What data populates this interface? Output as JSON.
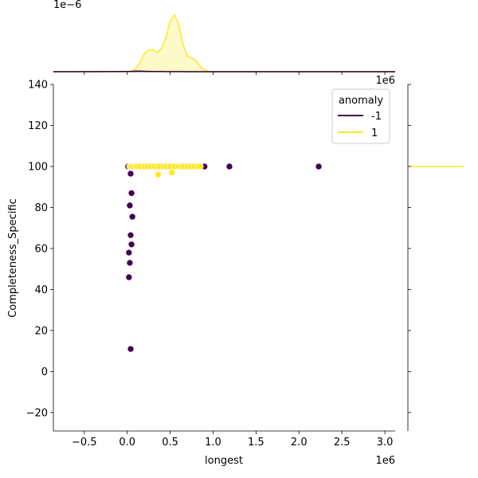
{
  "chart_data": {
    "type": "scatter",
    "xlabel": "longest",
    "ylabel": "Completeness_Specific",
    "x_offset_label": "1e6",
    "top_marginal_offset_label": "1e−6",
    "right_marginal_offset_label": "1e6",
    "xlim": [
      -0.86,
      3.12
    ],
    "ylim": [
      -29,
      140
    ],
    "x_ticks": [
      -0.5,
      0.0,
      0.5,
      1.0,
      1.5,
      2.0,
      2.5,
      3.0
    ],
    "x_tick_labels": [
      "−0.5",
      "0.0",
      "0.5",
      "1.0",
      "1.5",
      "2.0",
      "2.5",
      "3.0"
    ],
    "y_ticks": [
      -20,
      0,
      20,
      40,
      60,
      80,
      100,
      120,
      140
    ],
    "y_tick_labels": [
      "−20",
      "0",
      "20",
      "40",
      "60",
      "80",
      "100",
      "120",
      "140"
    ],
    "grid": false,
    "legend": {
      "title": "anomaly",
      "placement": "top-right",
      "entries": [
        {
          "label": "-1",
          "color": "#440154"
        },
        {
          "label": "1",
          "color": "#fde725"
        }
      ]
    },
    "series": [
      {
        "name": "-1",
        "color": "#440154",
        "x": [
          0.01,
          0.03,
          0.04,
          0.05,
          0.06,
          0.07,
          0.08,
          0.09,
          0.1,
          0.04,
          0.05,
          0.03,
          0.06,
          0.02,
          0.04,
          0.05,
          0.02,
          0.03,
          0.04,
          0.9,
          1.19,
          2.23,
          0.11
        ],
        "y": [
          100,
          100,
          100,
          100,
          100,
          100,
          100,
          100,
          100,
          96.5,
          87,
          81,
          75.5,
          58,
          66.5,
          62,
          46,
          53,
          11,
          100,
          100,
          100,
          100
        ]
      },
      {
        "name": "1",
        "color": "#fde725",
        "x": [
          0.03,
          0.05,
          0.08,
          0.1,
          0.12,
          0.15,
          0.2,
          0.24,
          0.28,
          0.32,
          0.35,
          0.38,
          0.42,
          0.45,
          0.5,
          0.55,
          0.6,
          0.63,
          0.66,
          0.7,
          0.74,
          0.78,
          0.82,
          0.85,
          0.36,
          0.52
        ],
        "y": [
          100,
          100,
          100,
          100,
          100,
          100,
          100,
          100,
          100,
          100,
          100,
          100,
          100,
          100,
          100,
          100,
          100,
          100,
          100,
          100,
          100,
          100,
          100,
          100,
          96,
          97
        ]
      }
    ],
    "top_marginal": {
      "type": "kde",
      "x": [
        -0.86,
        -0.3,
        -0.1,
        0.0,
        0.05,
        0.1,
        0.15,
        0.2,
        0.25,
        0.3,
        0.35,
        0.4,
        0.45,
        0.5,
        0.55,
        0.6,
        0.65,
        0.7,
        0.75,
        0.8,
        0.85,
        0.9,
        0.95,
        1.0,
        3.12
      ],
      "y1": [
        0,
        0,
        0,
        0.02,
        0.08,
        0.3,
        0.9,
        1.7,
        2.05,
        2.1,
        1.8,
        2.2,
        3.2,
        4.8,
        5.4,
        4.5,
        2.6,
        1.5,
        1.3,
        1.1,
        0.5,
        0.15,
        0.03,
        0,
        0
      ],
      "y2": [
        0,
        0.004,
        0.012,
        0.02,
        0.03,
        0.05,
        0.05,
        0.04,
        0.03,
        0.02,
        0.015,
        0.012,
        0.01,
        0.008,
        0.006,
        0.005,
        0.004,
        0.003,
        0.003,
        0.002,
        0.002,
        0.001,
        0.001,
        0,
        0
      ]
    },
    "right_marginal": {
      "type": "kde",
      "value_at": 100
    }
  }
}
